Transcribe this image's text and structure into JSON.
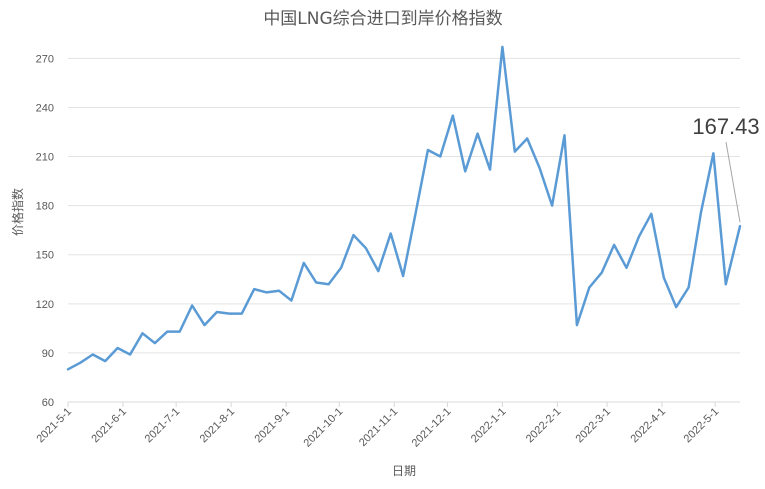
{
  "chart_data": {
    "type": "line",
    "title": "中国LNG综合进口到岸价格指数",
    "xlabel": "日期",
    "ylabel": "价格指数",
    "ylim": [
      60,
      280
    ],
    "yticks": [
      60,
      90,
      120,
      150,
      180,
      210,
      240,
      270
    ],
    "xlim": [
      "2021-05-01",
      "2022-05-15"
    ],
    "xticks": [
      "2021-5-1",
      "2021-6-1",
      "2021-7-1",
      "2021-8-1",
      "2021-9-1",
      "2021-10-1",
      "2021-11-1",
      "2021-12-1",
      "2022-1-1",
      "2022-2-1",
      "2022-3-1",
      "2022-4-1",
      "2022-5-1"
    ],
    "grid": "horizontal",
    "line_color": "#5b9bd5",
    "annotation": {
      "text": "167.43",
      "x": "2022-05-15",
      "y": 167.43
    },
    "series": [
      {
        "x": [
          "2021-05-01",
          "2021-05-08",
          "2021-05-15",
          "2021-05-22",
          "2021-05-29",
          "2021-06-05",
          "2021-06-12",
          "2021-06-19",
          "2021-06-26",
          "2021-07-03",
          "2021-07-10",
          "2021-07-17",
          "2021-07-24",
          "2021-07-31",
          "2021-08-07",
          "2021-08-14",
          "2021-08-21",
          "2021-08-28",
          "2021-09-04",
          "2021-09-11",
          "2021-09-18",
          "2021-09-25",
          "2021-10-02",
          "2021-10-09",
          "2021-10-16",
          "2021-10-23",
          "2021-10-30",
          "2021-11-06",
          "2021-11-13",
          "2021-11-20",
          "2021-11-27",
          "2021-12-04",
          "2021-12-11",
          "2021-12-18",
          "2021-12-25",
          "2022-01-01",
          "2022-01-08",
          "2022-01-15",
          "2022-01-22",
          "2022-01-29",
          "2022-02-05",
          "2022-02-12",
          "2022-02-19",
          "2022-02-26",
          "2022-03-05",
          "2022-03-12",
          "2022-03-19",
          "2022-03-26",
          "2022-04-02",
          "2022-04-09",
          "2022-04-16",
          "2022-04-23",
          "2022-04-30",
          "2022-05-07",
          "2022-05-15"
        ],
        "values": [
          80,
          84,
          89,
          85,
          93,
          89,
          102,
          96,
          103,
          103,
          119,
          107,
          115,
          114,
          114,
          129,
          127,
          128,
          122,
          145,
          133,
          132,
          142,
          162,
          154,
          140,
          163,
          137,
          175,
          214,
          210,
          235,
          201,
          224,
          202,
          277,
          213,
          221,
          203,
          180,
          223,
          107,
          130,
          139,
          156,
          142,
          161,
          175,
          136,
          118,
          130,
          176,
          212,
          132,
          167.43
        ]
      }
    ]
  }
}
